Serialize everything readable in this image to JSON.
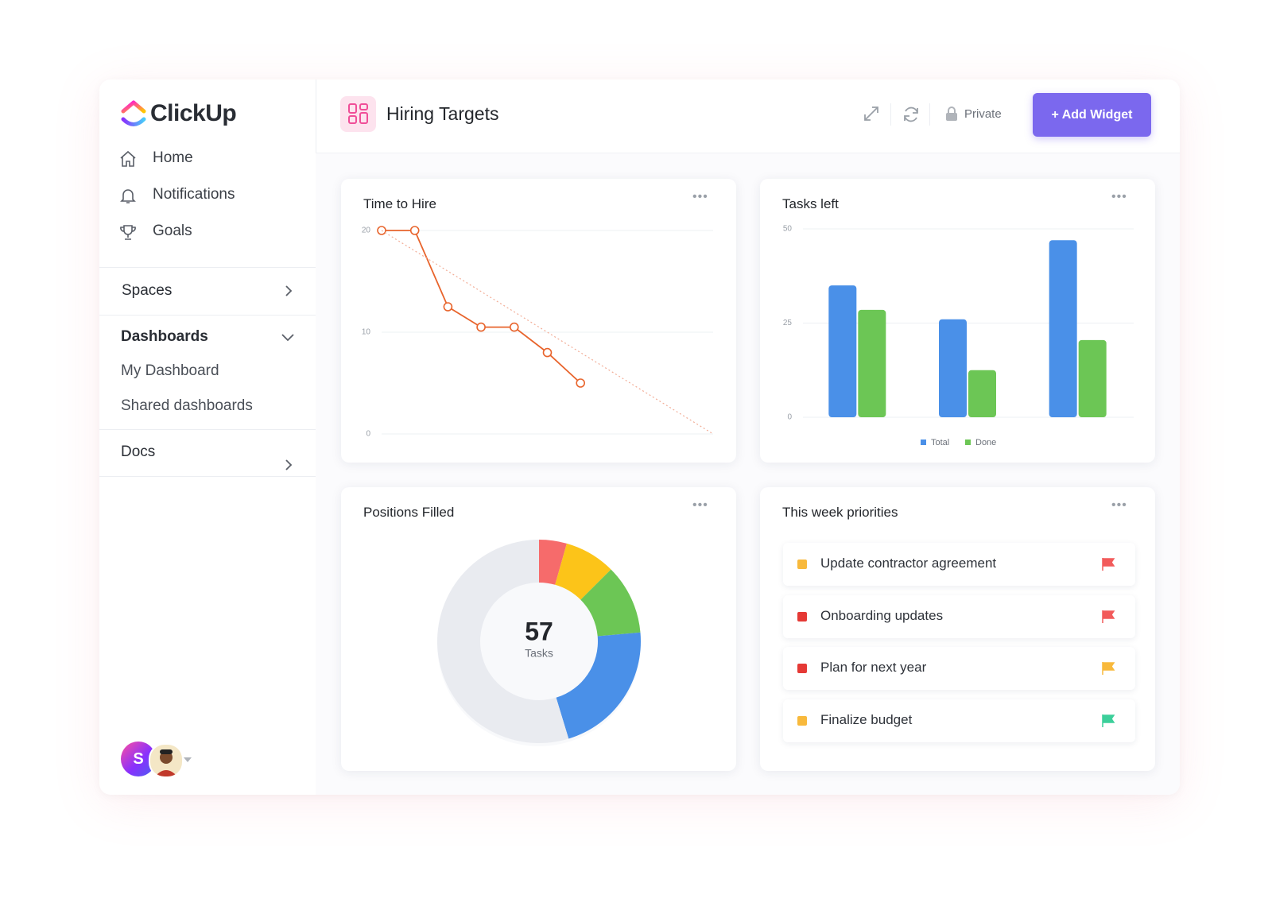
{
  "sidebar": {
    "brand": "ClickUp",
    "nav": [
      "Home",
      "Notifications",
      "Goals"
    ],
    "spaces": "Spaces",
    "dashboards": {
      "title": "Dashboards",
      "items": [
        "My Dashboard",
        "Shared dashboards"
      ]
    },
    "docs": "Docs",
    "avatar_initial": "S"
  },
  "header": {
    "title": "Hiring Targets",
    "privacy": "Private",
    "add_widget": "+ Add Widget"
  },
  "chart_data": [
    {
      "type": "line",
      "title": "Time to Hire",
      "categories": [
        null,
        null,
        null,
        null,
        null,
        null,
        null,
        null,
        null,
        null,
        null
      ],
      "series": [
        {
          "color": "#e8642c",
          "values": [
            20,
            20,
            12.5,
            10.5,
            10.5,
            8,
            5,
            null,
            null,
            null,
            null
          ]
        },
        {
          "color": "#f2ad97",
          "style": "dotted",
          "values": [
            20,
            18,
            16,
            14,
            12,
            10,
            8,
            6,
            4,
            2,
            0
          ]
        }
      ],
      "ylim": [
        0,
        20
      ],
      "yticks": [
        0,
        10,
        20
      ],
      "grid": true
    },
    {
      "type": "bar",
      "title": "Tasks left",
      "categories": [
        null,
        null,
        null
      ],
      "series": [
        {
          "name": "Total",
          "color": "#4a90e8",
          "values": [
            35,
            26,
            47
          ]
        },
        {
          "name": "Done",
          "color": "#6cc655",
          "values": [
            28.5,
            12.5,
            20.5
          ]
        }
      ],
      "ylim": [
        0,
        50
      ],
      "yticks": [
        0,
        25,
        50
      ],
      "grid": true,
      "legend": "bottom"
    },
    {
      "type": "donut",
      "title": "Positions Filled",
      "categories": [
        null,
        null,
        null,
        null,
        null
      ],
      "values": [
        4.4,
        8.1,
        11.1,
        21.7,
        54.7
      ],
      "colors": [
        "#f66b6b",
        "#fcc419",
        "#6cc655",
        "#4a90e8",
        "#e9ebf0"
      ],
      "center_value": 57,
      "center_label": "Tasks"
    }
  ],
  "priorities": {
    "title": "This week priorities",
    "items": [
      {
        "text": "Update contractor agreement",
        "status_color": "#f8b93c",
        "flag_color": "#f25b5b"
      },
      {
        "text": "Onboarding updates",
        "status_color": "#e53935",
        "flag_color": "#f25b5b"
      },
      {
        "text": "Plan for next year",
        "status_color": "#e53935",
        "flag_color": "#f8b93c"
      },
      {
        "text": "Finalize budget",
        "status_color": "#f8b93c",
        "flag_color": "#3ccf9a"
      }
    ]
  }
}
